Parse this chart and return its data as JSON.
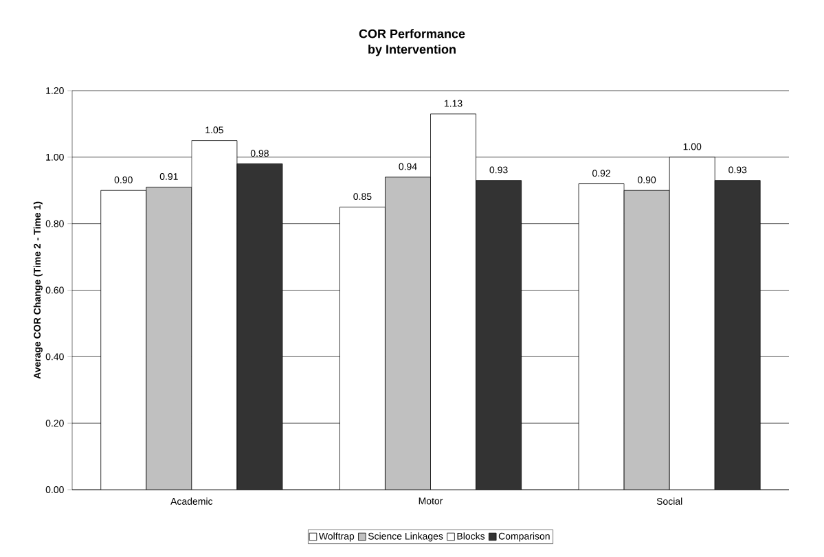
{
  "chart_data": {
    "type": "bar",
    "title": "COR Performance\nby Intervention",
    "ylabel": "Average COR Change (Time 2 - Time 1)",
    "categories": [
      "Academic",
      "Motor",
      "Social"
    ],
    "series": [
      {
        "name": "Wolftrap",
        "color": "#ffffff",
        "values": [
          0.9,
          0.85,
          0.92
        ],
        "value_labels": [
          "0.90",
          "0.85",
          "0.92"
        ]
      },
      {
        "name": "Science Linkages",
        "color": "#c0c0c0",
        "values": [
          0.91,
          0.94,
          0.9
        ],
        "value_labels": [
          "0.91",
          "0.94",
          "0.90"
        ]
      },
      {
        "name": "Blocks",
        "color": "#ffffff",
        "values": [
          1.05,
          1.13,
          1.0
        ],
        "value_labels": [
          "1.05",
          "1.13",
          "1.00"
        ]
      },
      {
        "name": "Comparison",
        "color": "#333333",
        "values": [
          0.98,
          0.93,
          0.93
        ],
        "value_labels": [
          "0.98",
          "0.93",
          "0.93"
        ]
      }
    ],
    "ylim": [
      0,
      1.2
    ],
    "yticks": [
      {
        "value": 0,
        "label": "0.00"
      },
      {
        "value": 0.2,
        "label": "0.20"
      },
      {
        "value": 0.4,
        "label": "0.40"
      },
      {
        "value": 0.6,
        "label": "0.60"
      },
      {
        "value": 0.8,
        "label": "0.80"
      },
      {
        "value": 1.0,
        "label": "1.00"
      },
      {
        "value": 1.2,
        "label": "1.20"
      }
    ],
    "grid": "y",
    "legend": "bottom"
  }
}
